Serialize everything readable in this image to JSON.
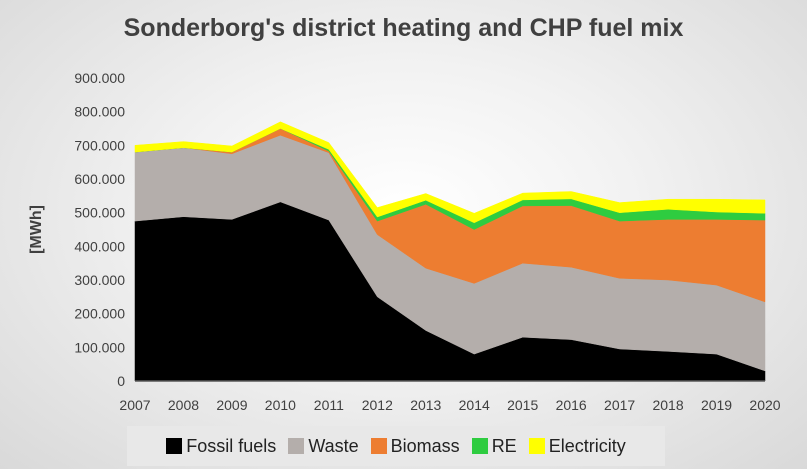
{
  "chart_data": {
    "type": "area",
    "stacked": true,
    "title": "Sonderborg's district heating and CHP fuel mix",
    "ylabel": "[MWh]",
    "xlabel": "",
    "x": [
      "2007",
      "2008",
      "2009",
      "2010",
      "2011",
      "2012",
      "2013",
      "2014",
      "2015",
      "2016",
      "2017",
      "2018",
      "2019",
      "2020"
    ],
    "ylim": [
      0,
      900000
    ],
    "yticks": [
      {
        "value": 0,
        "label": "0"
      },
      {
        "value": 100000,
        "label": "100.000"
      },
      {
        "value": 200000,
        "label": "200.000"
      },
      {
        "value": 300000,
        "label": "300.000"
      },
      {
        "value": 400000,
        "label": "400.000"
      },
      {
        "value": 500000,
        "label": "500.000"
      },
      {
        "value": 600000,
        "label": "600.000"
      },
      {
        "value": 700000,
        "label": "700.000"
      },
      {
        "value": 800000,
        "label": "800.000"
      },
      {
        "value": 900000,
        "label": "900.000"
      }
    ],
    "grid": false,
    "legend_position": "bottom",
    "series": [
      {
        "name": "Fossil fuels",
        "color": "#000000",
        "values": [
          475000,
          488000,
          480000,
          532000,
          478000,
          250000,
          150000,
          80000,
          130000,
          123000,
          95000,
          88000,
          80000,
          30000
        ]
      },
      {
        "name": "Waste",
        "color": "#b4aeab",
        "values": [
          205000,
          205000,
          195000,
          198000,
          200000,
          185000,
          185000,
          210000,
          220000,
          215000,
          210000,
          212000,
          205000,
          205000
        ]
      },
      {
        "name": "Biomass",
        "color": "#ed7d31",
        "values": [
          0,
          0,
          5000,
          20000,
          5000,
          40000,
          190000,
          160000,
          170000,
          183000,
          170000,
          180000,
          195000,
          243000
        ]
      },
      {
        "name": "RE",
        "color": "#2ecc40",
        "values": [
          0,
          0,
          0,
          0,
          5000,
          12000,
          12000,
          20000,
          18000,
          20000,
          25000,
          30000,
          22000,
          20000
        ]
      },
      {
        "name": "Electricity",
        "color": "#ffff00",
        "values": [
          20000,
          18000,
          18000,
          20000,
          20000,
          28000,
          20000,
          28000,
          20000,
          22000,
          30000,
          30000,
          38000,
          40000
        ]
      }
    ]
  }
}
